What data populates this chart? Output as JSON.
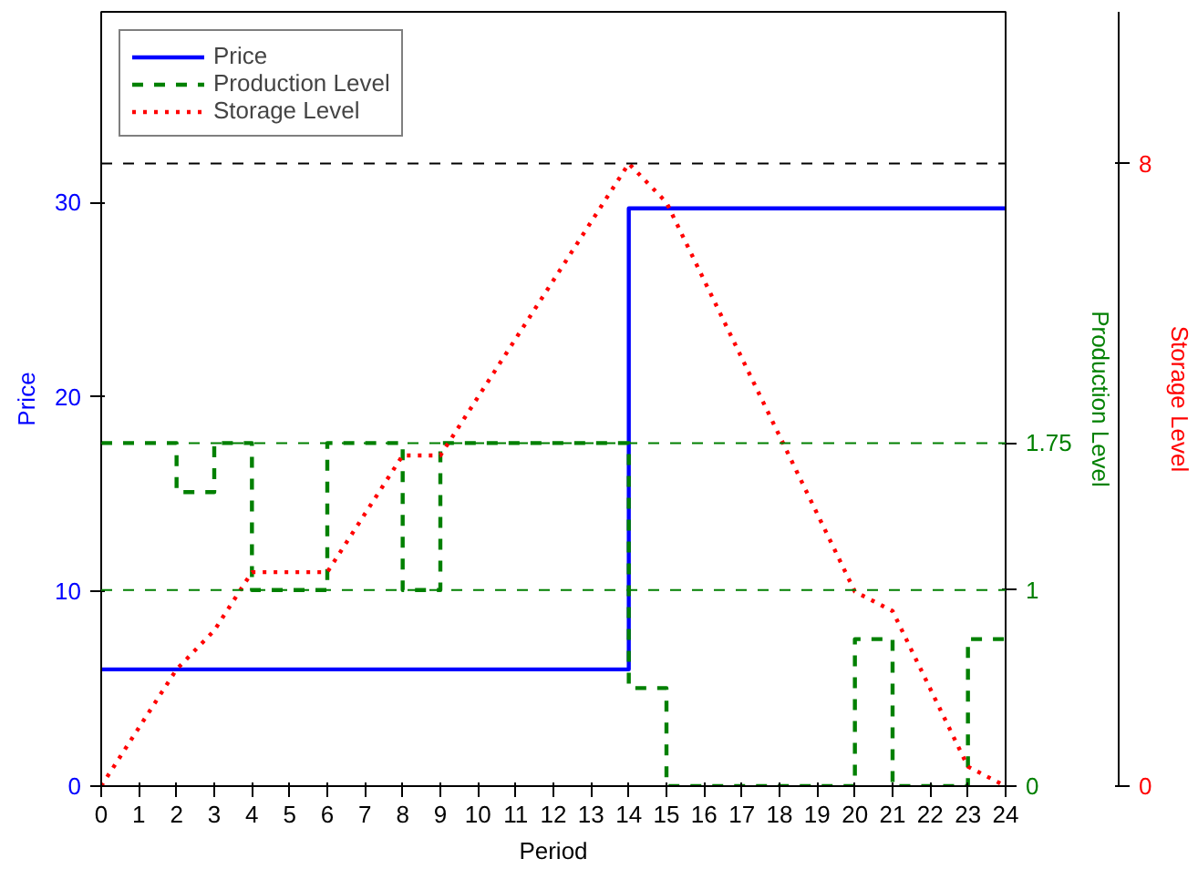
{
  "chart_data": {
    "type": "step",
    "xlabel": "Period",
    "ylabel": "Price",
    "y2label": "Production Level",
    "y3label": "Storage Level",
    "x": [
      0,
      1,
      2,
      3,
      4,
      5,
      6,
      7,
      8,
      9,
      10,
      11,
      12,
      13,
      14,
      15,
      16,
      17,
      18,
      19,
      20,
      21,
      22,
      23,
      24
    ],
    "xlim": [
      0,
      24
    ],
    "xticks": [
      0,
      1,
      2,
      3,
      4,
      5,
      6,
      7,
      8,
      9,
      10,
      11,
      12,
      13,
      14,
      15,
      16,
      17,
      18,
      19,
      20,
      21,
      22,
      23,
      24
    ],
    "ylim": [
      0,
      39.8
    ],
    "yticks": [
      0,
      10,
      20,
      30
    ],
    "y2lim": [
      0,
      3.95
    ],
    "y2ticks": [
      0,
      1,
      1.75
    ],
    "y3lim": [
      0,
      9.95
    ],
    "y3ticks": [
      0,
      8
    ],
    "series": [
      {
        "name": "Price",
        "color": "#0000ff",
        "line_style": "solid",
        "values": [
          6,
          6,
          6,
          6,
          6,
          6,
          6,
          6,
          6,
          6,
          6,
          6,
          6,
          6,
          29.7,
          29.7,
          29.7,
          29.7,
          29.7,
          29.7,
          29.7,
          29.7,
          29.7,
          29.7,
          29.7
        ]
      },
      {
        "name": "Production Level",
        "axis": "y2",
        "color": "#008000",
        "line_style": "dashed",
        "values": [
          1.75,
          1.75,
          1.5,
          1.75,
          1,
          1,
          1.75,
          1.75,
          1,
          1.75,
          1.75,
          1.75,
          1.75,
          1.75,
          0.5,
          0,
          0,
          0,
          0,
          0,
          0.75,
          0,
          0,
          0.75,
          0.75
        ]
      },
      {
        "name": "Storage Level",
        "type": "line",
        "axis": "y3",
        "color": "#ff0000",
        "line_style": "dotted",
        "values": [
          0,
          0.75,
          1.5,
          2,
          2.75,
          2.75,
          2.75,
          3.5,
          4.25,
          4.25,
          5,
          5.75,
          6.5,
          7.25,
          8,
          7.5,
          6.5,
          5.5,
          4.5,
          3.5,
          2.5,
          2.25,
          1.25,
          0.25,
          0
        ]
      }
    ],
    "ref_lines": [
      {
        "axis": "y3",
        "value": 8,
        "label": null,
        "color": "#000000",
        "line_style": "dashed"
      },
      {
        "axis": "y2",
        "value": 1.75,
        "label": null,
        "color": "#008000",
        "line_style": "dashed"
      },
      {
        "axis": "y2",
        "value": 1,
        "label": null,
        "color": "#008000",
        "line_style": "dashed"
      }
    ],
    "legend": "top left",
    "grid": false
  }
}
